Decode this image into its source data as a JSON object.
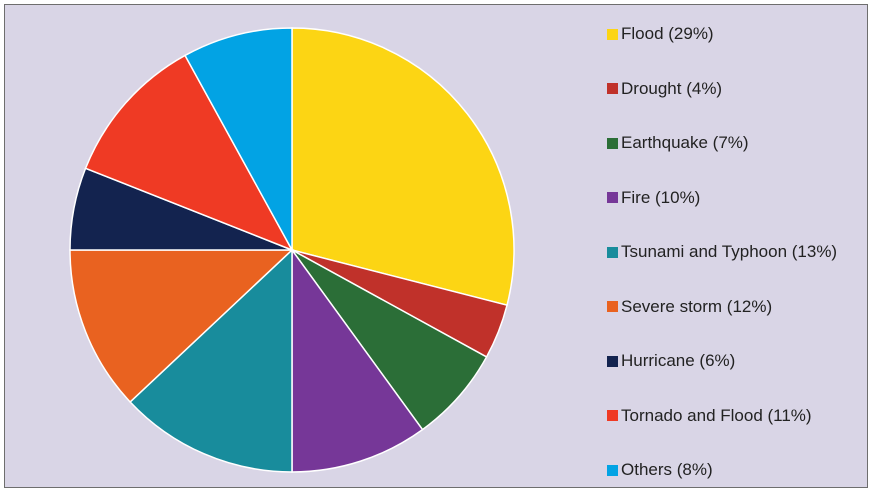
{
  "chart_data": {
    "type": "pie",
    "title": "",
    "legend_position": "right",
    "slices": [
      {
        "label": "Flood (29%)",
        "value": 29,
        "color": "#fcd514"
      },
      {
        "label": "Drought (4%)",
        "value": 4,
        "color": "#c0312a"
      },
      {
        "label": "Earthquake (7%)",
        "value": 7,
        "color": "#2b6e37"
      },
      {
        "label": "Fire (10%)",
        "value": 10,
        "color": "#763798"
      },
      {
        "label": "Tsunami and Typhoon  (13%)",
        "value": 13,
        "color": "#188c9c"
      },
      {
        "label": "Severe storm (12%)",
        "value": 12,
        "color": "#e96220"
      },
      {
        "label": "Hurricane (6%)",
        "value": 6,
        "color": "#13234f"
      },
      {
        "label": "Tornado and Flood  (11%)",
        "value": 11,
        "color": "#ef3a24"
      },
      {
        "label": "Others (8%)",
        "value": 8,
        "color": "#02a3e4"
      }
    ]
  }
}
